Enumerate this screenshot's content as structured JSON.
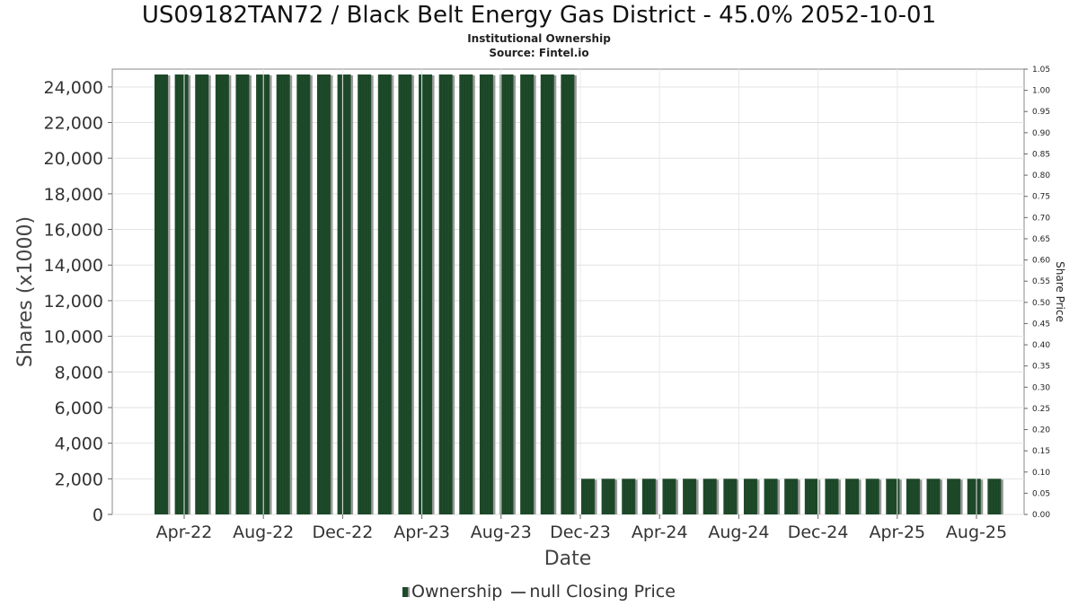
{
  "chart_data": {
    "type": "bar",
    "title": "US09182TAN72 / Black Belt Energy Gas District - 45.0% 2052-10-01",
    "subtitle": "Institutional Ownership",
    "source": "Source: Fintel.io",
    "xlabel": "Date",
    "ylabel": "Shares (x1000)",
    "y2label": "Share Price",
    "ylim": [
      0,
      25000
    ],
    "y2lim": [
      0,
      1.05
    ],
    "yticks": [
      "0",
      "2,000",
      "4,000",
      "6,000",
      "8,000",
      "10,000",
      "12,000",
      "14,000",
      "16,000",
      "18,000",
      "20,000",
      "22,000",
      "24,000"
    ],
    "y2ticks": [
      "0.00",
      "0.05",
      "0.10",
      "0.15",
      "0.20",
      "0.25",
      "0.30",
      "0.35",
      "0.40",
      "0.45",
      "0.50",
      "0.55",
      "0.60",
      "0.65",
      "0.70",
      "0.75",
      "0.80",
      "0.85",
      "0.90",
      "0.95",
      "1.00",
      "1.05"
    ],
    "xticks": [
      "Apr-22",
      "Aug-22",
      "Dec-22",
      "Apr-23",
      "Aug-23",
      "Dec-23",
      "Apr-24",
      "Aug-24",
      "Dec-24",
      "Apr-25",
      "Aug-25"
    ],
    "grid": true,
    "series": [
      {
        "name": "Ownership",
        "color": "#1e4a2a",
        "values": [
          24700,
          24700,
          24700,
          24700,
          24700,
          24700,
          24700,
          24700,
          24700,
          24700,
          24700,
          24700,
          24700,
          24700,
          24700,
          24700,
          24700,
          24700,
          24700,
          24700,
          24700,
          2000,
          2000,
          2000,
          2000,
          2000,
          2000,
          2000,
          2000,
          2000,
          2000,
          2000,
          2000,
          2000,
          2000,
          2000,
          2000,
          2000,
          2000,
          2000,
          2000,
          2000
        ]
      },
      {
        "name": "null Closing Price",
        "color": "#555555",
        "values": []
      }
    ],
    "legend": {
      "position": "bottom",
      "bar_label": "Ownership",
      "line_label": "null Closing Price"
    }
  }
}
